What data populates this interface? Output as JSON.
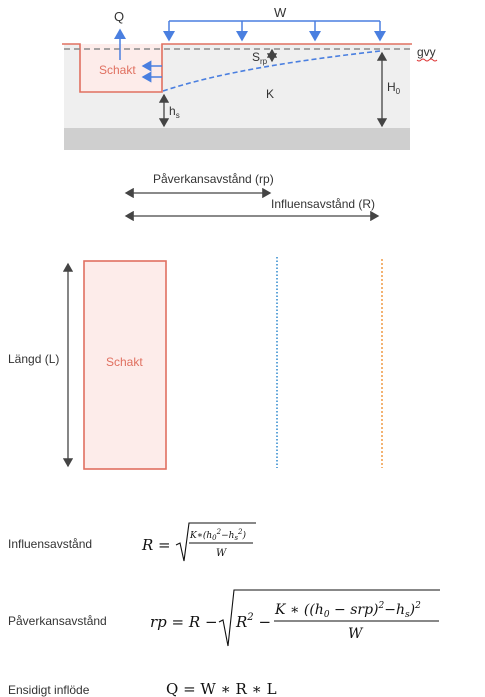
{
  "colors": {
    "accent_red": "#e07060",
    "fill_pink": "#fdecea",
    "arrow_blue": "#4a7fe0",
    "ground_gray": "#efefef",
    "bedrock_gray": "#cfcfcf",
    "gvy_dash": "#8a8a8a",
    "influence_orange": "#f0a050",
    "impact_blue": "#3a8fd0"
  },
  "cross_section": {
    "q_label": "Q",
    "w_label": "W",
    "gvy_label": "gvy",
    "schakt_label": "Schakt",
    "srp_label_main": "S",
    "srp_label_sub": "rp",
    "k_label": "K",
    "h0_label_main": "H",
    "h0_label_sub": "0",
    "hs_label_main": "h",
    "hs_label_sub": "s"
  },
  "distances": {
    "rp_label": "Påverkansavstånd (rp)",
    "r_label": "Influensavstånd (R)"
  },
  "plan_view": {
    "length_label": "Längd (L)",
    "schakt_label": "Schakt"
  },
  "formulas": {
    "influence_label": "Influensavstånd",
    "impact_label": "Påverkansavstånd",
    "inflow_label": "Ensidigt inflöde",
    "inflow_formula": "Q = W ∗ R ∗ L"
  }
}
